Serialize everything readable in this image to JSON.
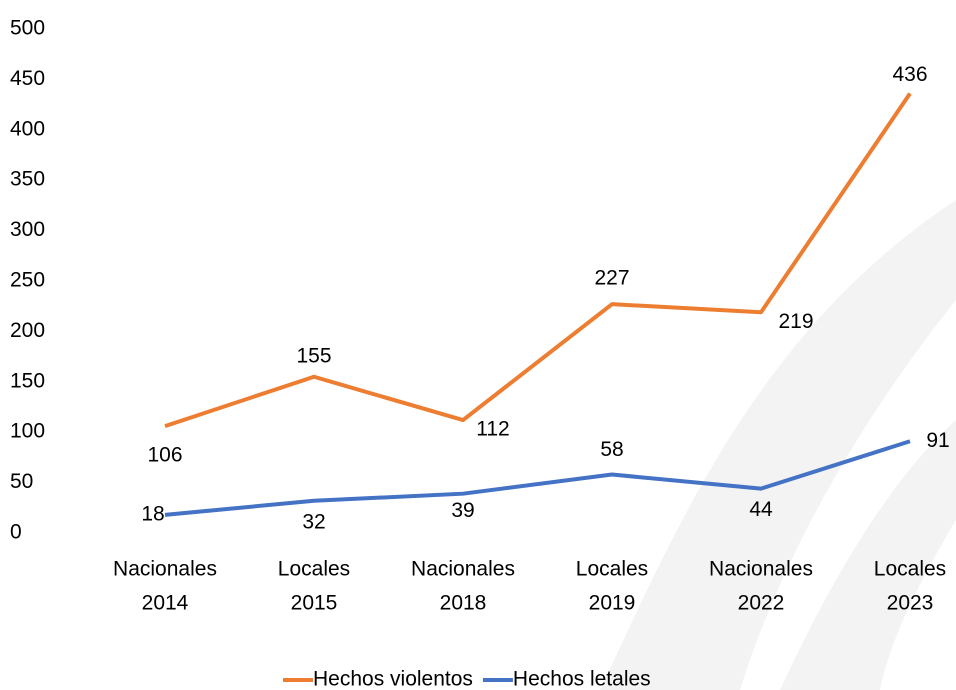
{
  "chart_data": {
    "type": "line",
    "categories": [
      [
        "Nacionales",
        "2014"
      ],
      [
        "Locales",
        "2015"
      ],
      [
        "Nacionales",
        "2018"
      ],
      [
        "Locales",
        "2019"
      ],
      [
        "Nacionales",
        "2022"
      ],
      [
        "Locales",
        "2023"
      ]
    ],
    "series": [
      {
        "name": "Hechos violentos",
        "color": "#ed7d31",
        "values": [
          106,
          155,
          112,
          227,
          219,
          436
        ]
      },
      {
        "name": "Hechos letales",
        "color": "#4472c4",
        "values": [
          18,
          32,
          39,
          58,
          44,
          91
        ]
      }
    ],
    "ylim": [
      0,
      500
    ],
    "yticks": [
      0,
      50,
      100,
      150,
      200,
      250,
      300,
      350,
      400,
      450,
      500
    ],
    "grid": false,
    "legend": "bottom"
  }
}
